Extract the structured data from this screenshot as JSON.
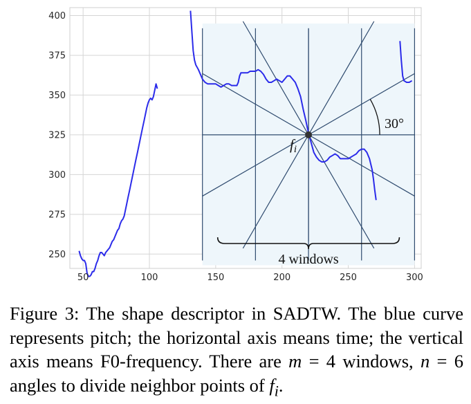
{
  "chart_data": {
    "type": "line",
    "xlim": [
      40,
      305
    ],
    "ylim": [
      241,
      405
    ],
    "x_ticks": [
      50,
      100,
      150,
      200,
      250,
      300
    ],
    "y_ticks": [
      250,
      275,
      300,
      325,
      350,
      375,
      400
    ],
    "grid": true,
    "series": [
      {
        "color": "#2b2bea",
        "segments": [
          [
            [
              47,
              252
            ],
            [
              48,
              249
            ],
            [
              49,
              247
            ],
            [
              50,
              246
            ],
            [
              51,
              246
            ],
            [
              52,
              244
            ],
            [
              53,
              238
            ],
            [
              54,
              236
            ],
            [
              55,
              236
            ],
            [
              56,
              237
            ],
            [
              57,
              239
            ],
            [
              58,
              239
            ],
            [
              59,
              241
            ],
            [
              60,
              244
            ],
            [
              61,
              246
            ],
            [
              62,
              249
            ],
            [
              63,
              251
            ],
            [
              64,
              251
            ],
            [
              65,
              250
            ],
            [
              66,
              249
            ],
            [
              67,
              251
            ],
            [
              68,
              252
            ],
            [
              69,
              253
            ],
            [
              70,
              254
            ],
            [
              71,
              256
            ],
            [
              72,
              258
            ],
            [
              73,
              259
            ],
            [
              74,
              261
            ],
            [
              75,
              263
            ],
            [
              76,
              265
            ],
            [
              77,
              266
            ],
            [
              78,
              269
            ],
            [
              79,
              271
            ],
            [
              80,
              272
            ],
            [
              81,
              274
            ],
            [
              82,
              278
            ],
            [
              83,
              282
            ],
            [
              84,
              286
            ],
            [
              85,
              290
            ],
            [
              86,
              294
            ],
            [
              87,
              298
            ],
            [
              88,
              302
            ],
            [
              89,
              306
            ],
            [
              90,
              310
            ],
            [
              91,
              314
            ],
            [
              92,
              318
            ],
            [
              93,
              322
            ],
            [
              94,
              326
            ],
            [
              95,
              330
            ],
            [
              96,
              334
            ],
            [
              97,
              338
            ],
            [
              98,
              342
            ],
            [
              99,
              345
            ],
            [
              100,
              347
            ],
            [
              101,
              348
            ],
            [
              102,
              347
            ],
            [
              103,
              349
            ],
            [
              104,
              353
            ],
            [
              105,
              357
            ],
            [
              106,
              354
            ]
          ],
          [
            [
              131,
              403
            ],
            [
              132,
              390
            ],
            [
              133,
              378
            ],
            [
              134,
              372
            ],
            [
              135,
              369
            ],
            [
              137,
              366
            ],
            [
              139,
              362
            ],
            [
              140,
              360
            ],
            [
              142,
              358
            ],
            [
              144,
              357
            ],
            [
              146,
              357
            ],
            [
              148,
              357
            ],
            [
              150,
              357
            ],
            [
              152,
              356
            ],
            [
              154,
              355
            ],
            [
              156,
              356
            ],
            [
              158,
              357
            ],
            [
              160,
              357
            ],
            [
              162,
              356
            ],
            [
              164,
              356
            ],
            [
              166,
              356
            ],
            [
              167,
              358
            ],
            [
              168,
              362
            ],
            [
              169,
              364
            ],
            [
              170,
              364
            ],
            [
              172,
              364
            ],
            [
              174,
              364
            ],
            [
              176,
              365
            ],
            [
              178,
              365
            ],
            [
              180,
              365
            ],
            [
              182,
              366
            ],
            [
              184,
              365
            ],
            [
              186,
              363
            ],
            [
              188,
              360
            ],
            [
              190,
              358
            ],
            [
              192,
              358
            ],
            [
              194,
              359
            ],
            [
              196,
              360
            ],
            [
              198,
              359
            ],
            [
              200,
              358
            ],
            [
              202,
              360
            ],
            [
              204,
              362
            ],
            [
              206,
              362
            ],
            [
              208,
              360
            ],
            [
              210,
              358
            ],
            [
              212,
              354
            ],
            [
              214,
              349
            ],
            [
              216,
              341
            ],
            [
              218,
              334
            ],
            [
              219,
              330
            ],
            [
              220,
              326
            ],
            [
              221,
              323
            ],
            [
              222,
              320
            ],
            [
              223,
              317
            ],
            [
              224,
              314
            ],
            [
              226,
              311
            ],
            [
              228,
              309
            ],
            [
              230,
              308
            ],
            [
              232,
              308
            ],
            [
              234,
              309
            ],
            [
              236,
              311
            ],
            [
              238,
              312
            ],
            [
              240,
              313
            ],
            [
              242,
              312
            ],
            [
              244,
              310
            ],
            [
              246,
              310
            ],
            [
              248,
              310
            ],
            [
              250,
              310
            ],
            [
              252,
              311
            ],
            [
              254,
              312
            ],
            [
              256,
              313
            ],
            [
              258,
              315
            ],
            [
              260,
              316
            ],
            [
              262,
              316
            ],
            [
              264,
              314
            ],
            [
              266,
              310
            ],
            [
              268,
              303
            ],
            [
              269,
              297
            ],
            [
              270,
              290
            ],
            [
              271,
              284
            ]
          ],
          [
            [
              289,
              384
            ],
            [
              290,
              372
            ],
            [
              291,
              362
            ],
            [
              292,
              359
            ],
            [
              294,
              358
            ],
            [
              296,
              358
            ],
            [
              298,
              359
            ]
          ]
        ]
      }
    ],
    "annotations": {
      "fi_label": "fi",
      "angle_label": "30°",
      "windows_label": "4 windows"
    }
  },
  "descriptor": {
    "center": [
      220,
      325
    ],
    "window_lines_x": [
      140,
      180,
      220,
      260,
      300
    ],
    "angle_step_deg": 30,
    "region_x": [
      140,
      300
    ],
    "region_y": [
      243,
      395
    ],
    "line_color": "#2e4a6e",
    "region_fill": "#eef6fb",
    "dot_color": "#333333"
  },
  "caption": {
    "label": "Figure 3:",
    "t1": "The shape descriptor in SADTW. The blue curve represents pitch; the horizontal axis means time; the vertical axis means F0-frequency. There are ",
    "m_var": "m",
    "m_eq": " = 4",
    "t2": " windows, ",
    "n_var": "n",
    "n_eq": " = 6",
    "t3": " angles to divide neighbor points of ",
    "f_var": "f",
    "f_sub": "i",
    "t4": "."
  }
}
